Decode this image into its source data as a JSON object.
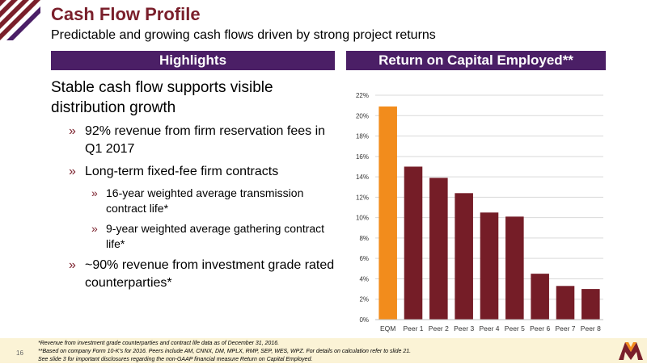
{
  "slide": {
    "title": "Cash Flow Profile",
    "subtitle": "Predictable and growing cash flows driven by strong project returns",
    "page_number": "16"
  },
  "highlights": {
    "header": "Highlights",
    "main": "Stable cash flow supports visible distribution growth",
    "bullets": [
      {
        "level": 1,
        "text": "92% revenue from firm reservation fees in Q1 2017"
      },
      {
        "level": 1,
        "text": "Long-term fixed-fee firm contracts"
      },
      {
        "level": 2,
        "text": "16-year weighted average transmission contract life*"
      },
      {
        "level": 2,
        "text": "9-year weighted average gathering contract life*"
      },
      {
        "level": 1,
        "text": "~90% revenue from investment grade rated counterparties*"
      }
    ]
  },
  "roce": {
    "header": "Return on Capital Employed**"
  },
  "chart_data": {
    "type": "bar",
    "categories": [
      "EQM",
      "Peer 1",
      "Peer 2",
      "Peer 3",
      "Peer 4",
      "Peer 5",
      "Peer 6",
      "Peer 7",
      "Peer 8"
    ],
    "values": [
      20.9,
      15.0,
      13.9,
      12.4,
      10.5,
      10.1,
      4.5,
      3.3,
      3.0
    ],
    "ylim": [
      0,
      22
    ],
    "yticks": [
      "0%",
      "2%",
      "4%",
      "6%",
      "8%",
      "10%",
      "12%",
      "14%",
      "16%",
      "18%",
      "20%",
      "22%"
    ],
    "grid": true,
    "colors": {
      "highlight": "#f28c1c",
      "peer": "#751d27"
    }
  },
  "footnotes": [
    "*Revenue from investment grade counterparties and contract life data as of December 31, 2016.",
    "**Based on company Form 10-K's for 2016. Peers include AM, CNNX, DM, MPLX, RMP, SEP, WES, WPZ. For details on calculation refer to slide 21.",
    "See slide 3 for important disclosures regarding the non-GAAP financial measure Return on Capital Employed."
  ]
}
